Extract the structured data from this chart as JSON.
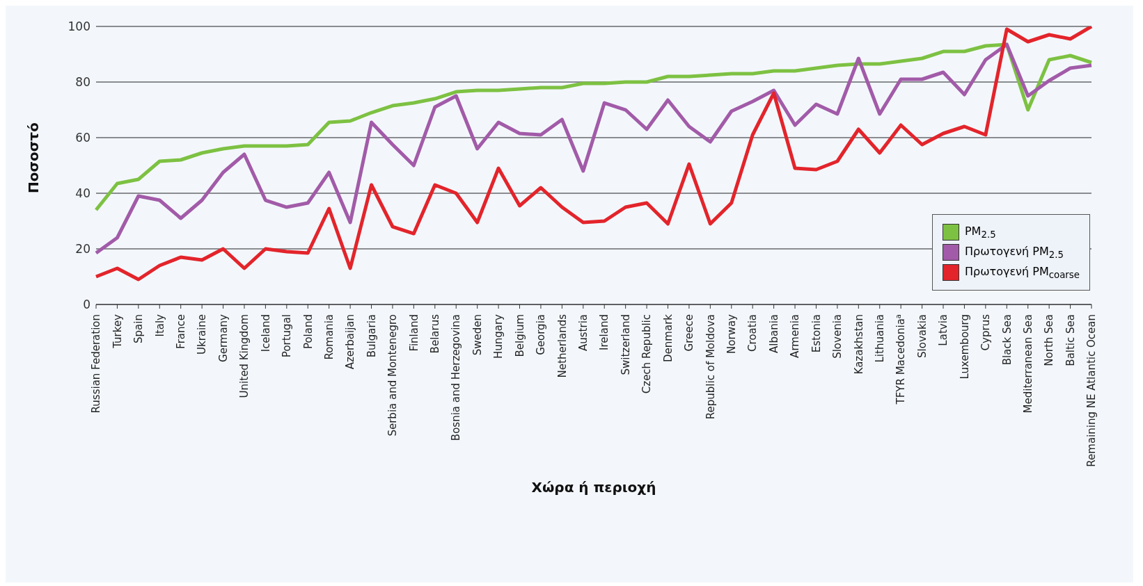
{
  "chart_data": {
    "type": "line",
    "xlabel": "Χώρα ή περιοχή",
    "ylabel": "Ποσοστό",
    "categories": [
      "Russian Federation",
      "Turkey",
      "Spain",
      "Italy",
      "France",
      "Ukraine",
      "Germany",
      "United Kingdom",
      "Iceland",
      "Portugal",
      "Poland",
      "Romania",
      "Azerbaijan",
      "Bulgaria",
      "Serbia and Montenegro",
      "Finland",
      "Belarus",
      "Bosnia and Herzegovina",
      "Sweden",
      "Hungary",
      "Belgium",
      "Georgia",
      "Netherlands",
      "Austria",
      "Ireland",
      "Switzerland",
      "Czech Republic",
      "Denmark",
      "Greece",
      "Republic of Moldova",
      "Norway",
      "Croatia",
      "Albania",
      "Armenia",
      "Estonia",
      "Slovenia",
      "Kazakhstan",
      "Lithuania",
      "TFYR Macedonia$^{a}$",
      "Slovakia",
      "Latvia",
      "Luxembourg",
      "Cyprus",
      "Black Sea",
      "Mediterranean Sea",
      "North Sea",
      "Baltic Sea",
      "Remaining NE Atlantic Ocean"
    ],
    "series": [
      {
        "name": "PM$_{2.5}$",
        "color": "#7dc142",
        "values": [
          34,
          43.5,
          45,
          51.5,
          52,
          54.5,
          56,
          57,
          57,
          57,
          57.5,
          65.5,
          66,
          69,
          71.5,
          72.5,
          74,
          76.5,
          77,
          77,
          77.5,
          78,
          78,
          79.5,
          79.5,
          80,
          80,
          82,
          82,
          82.5,
          83,
          83,
          84,
          84,
          85,
          86,
          86.5,
          86.5,
          87.5,
          88.5,
          91,
          91,
          93,
          93.5,
          70,
          88,
          89.5,
          87
        ]
      },
      {
        "name": "Πρωτογενή PM$_{2.5}$",
        "color": "#a25ba8",
        "values": [
          18.5,
          24,
          39,
          37.5,
          31,
          37.5,
          47.5,
          54,
          37.5,
          35,
          36.5,
          47.5,
          29.5,
          65.5,
          57.5,
          50,
          71,
          75,
          56,
          65.5,
          61.5,
          61,
          66.5,
          48,
          72.5,
          70,
          63,
          73.5,
          64,
          58.5,
          69.5,
          73,
          77,
          64.5,
          72,
          68.5,
          88.5,
          68.5,
          81,
          81,
          83.5,
          75.5,
          88,
          93.5,
          75,
          80.5,
          85,
          86
        ]
      },
      {
        "name": "Πρωτογενή PM$_{coarse}$",
        "color": "#e3242b",
        "values": [
          10,
          13,
          9,
          14,
          17,
          16,
          20,
          13,
          20,
          19,
          18.5,
          34.5,
          13,
          43,
          28,
          25.5,
          43,
          40,
          29.5,
          49,
          35.5,
          42,
          35,
          29.5,
          30,
          35,
          36.5,
          29,
          50.5,
          29,
          36.5,
          61,
          76,
          49,
          48.5,
          51.5,
          63,
          54.5,
          64.5,
          57.5,
          61.5,
          64,
          61,
          99,
          94.5,
          97,
          95.5,
          100
        ]
      }
    ],
    "ylim": [
      0,
      100
    ],
    "yticks": [
      0,
      20,
      40,
      60,
      80,
      100
    ],
    "grid": "y",
    "legend": "bottom right",
    "marker": "none",
    "line_style": "solid"
  }
}
